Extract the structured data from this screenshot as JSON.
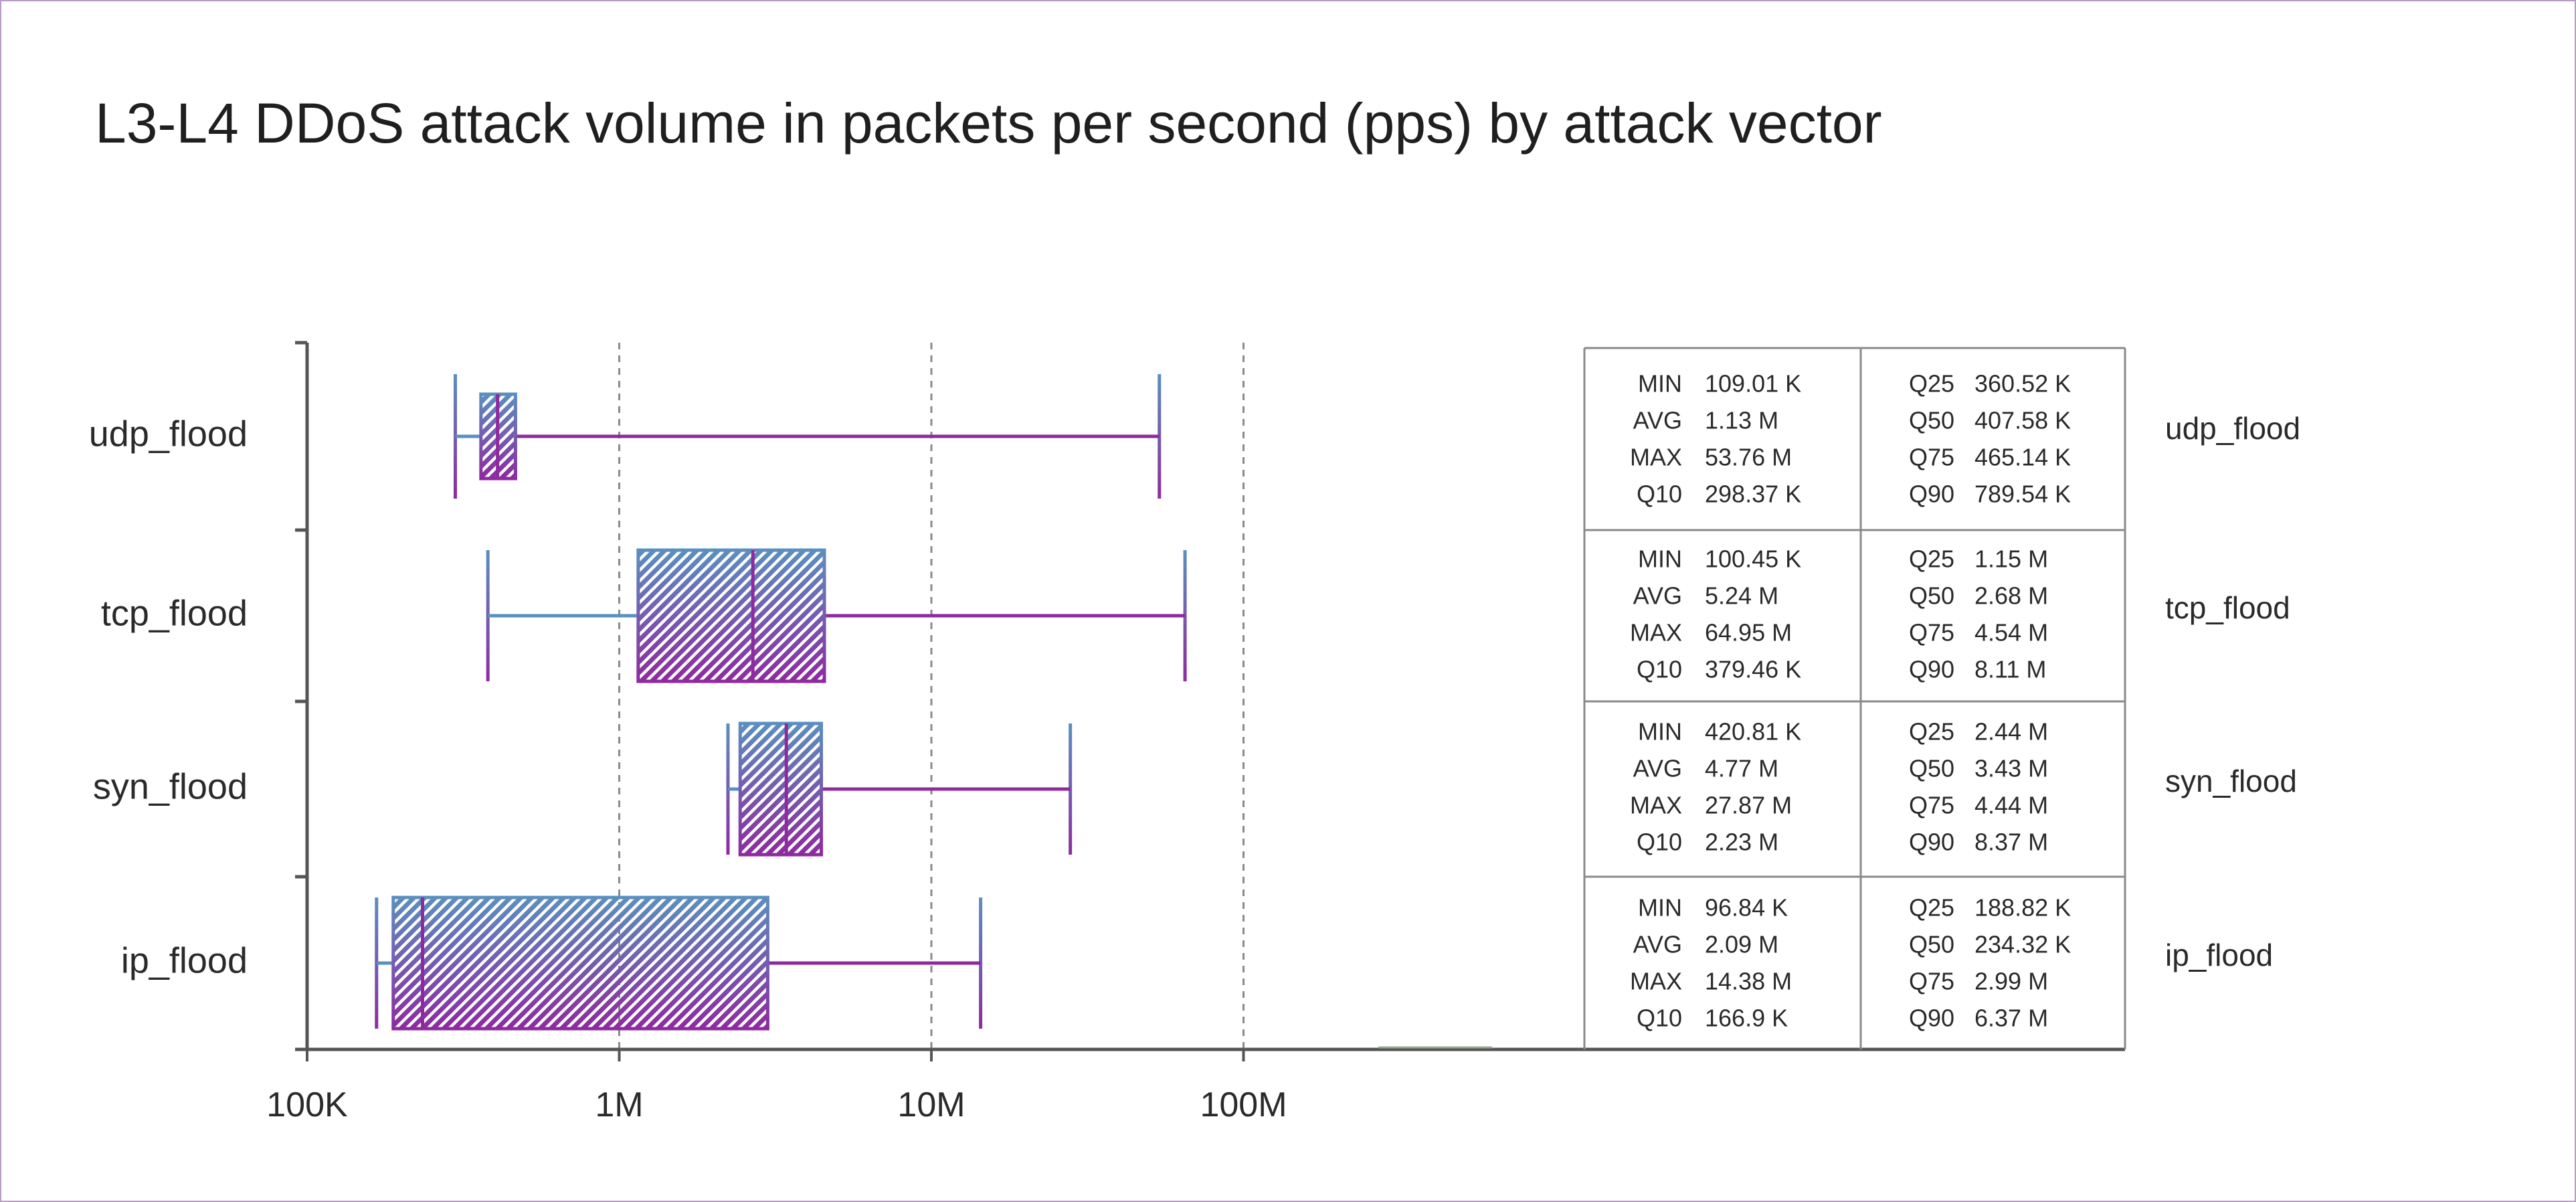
{
  "chart_data": {
    "type": "box",
    "title": "L3-L4 DDoS attack volume in packets per second (pps) by attack vector",
    "x_scale": "log",
    "xlim": [
      100000,
      1000000000
    ],
    "x_ticks": [
      {
        "value": 100000,
        "label": "100K"
      },
      {
        "value": 1000000,
        "label": "1M"
      },
      {
        "value": 10000000,
        "label": "10M"
      },
      {
        "value": 100000000,
        "label": "100M"
      }
    ],
    "grid": "vertical dashed at 1M, 10M, 100M",
    "colors": {
      "box_top": "#5b8fbf",
      "box_bottom": "#8e2aa0",
      "grid": "#8a8a8a",
      "axis": "#555555",
      "table_border": "#8a8a8a"
    },
    "categories": [
      "udp_flood",
      "tcp_flood",
      "syn_flood",
      "ip_flood"
    ],
    "series": [
      {
        "category": "udp_flood",
        "min": 109010,
        "q10": 298370,
        "q25": 360520,
        "q50": 407580,
        "q75": 465140,
        "q90": 789540,
        "max": 53760000,
        "avg": 1130000,
        "whisker_low": 298370,
        "whisker_high": 53760000,
        "stats": {
          "MIN": "109.01 K",
          "AVG": "1.13 M",
          "MAX": "53.76 M",
          "Q10": "298.37 K",
          "Q25": "360.52 K",
          "Q50": "407.58 K",
          "Q75": "465.14 K",
          "Q90": "789.54 K"
        }
      },
      {
        "category": "tcp_flood",
        "min": 100450,
        "q10": 379460,
        "q25": 1150000,
        "q50": 2680000,
        "q75": 4540000,
        "q90": 8110000,
        "max": 64950000,
        "avg": 5240000,
        "whisker_low": 379460,
        "whisker_high": 64950000,
        "stats": {
          "MIN": "100.45 K",
          "AVG": "5.24 M",
          "MAX": "64.95 M",
          "Q10": "379.46 K",
          "Q25": "1.15 M",
          "Q50": "2.68 M",
          "Q75": "4.54 M",
          "Q90": "8.11 M"
        }
      },
      {
        "category": "syn_flood",
        "min": 420810,
        "q10": 2230000,
        "q25": 2440000,
        "q50": 3430000,
        "q75": 4440000,
        "q90": 8370000,
        "max": 27870000,
        "avg": 4770000,
        "whisker_low": 2230000,
        "whisker_high": 27870000,
        "stats": {
          "MIN": "420.81 K",
          "AVG": "4.77 M",
          "MAX": "27.87 M",
          "Q10": "2.23 M",
          "Q25": "2.44 M",
          "Q50": "3.43 M",
          "Q75": "4.44 M",
          "Q90": "8.37 M"
        }
      },
      {
        "category": "ip_flood",
        "min": 96840,
        "q10": 166900,
        "q25": 188820,
        "q50": 234320,
        "q75": 2990000,
        "q90": 6370000,
        "max": 14380000,
        "avg": 2090000,
        "whisker_low": 166900,
        "whisker_high": 14380000,
        "stats": {
          "MIN": "96.84 K",
          "AVG": "2.09 M",
          "MAX": "14.38 M",
          "Q10": "166.9 K",
          "Q25": "188.82 K",
          "Q50": "234.32 K",
          "Q75": "2.99 M",
          "Q90": "6.37 M"
        }
      }
    ]
  }
}
